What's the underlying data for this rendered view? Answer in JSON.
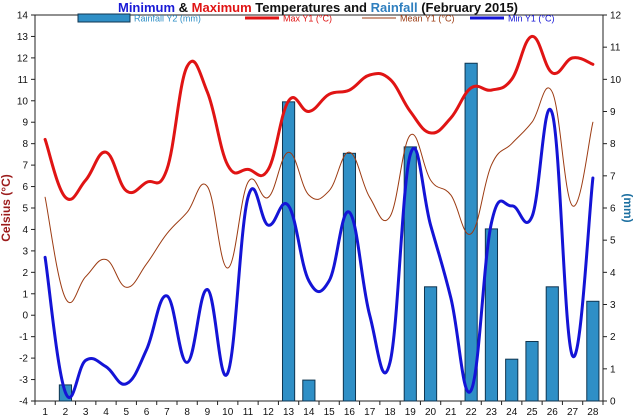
{
  "chart_data": {
    "type": "line",
    "title_parts": [
      {
        "text": "Minimum",
        "color": "#1a1ad6"
      },
      {
        "text": " & ",
        "color": "#111111"
      },
      {
        "text": "Maximum",
        "color": "#e01414"
      },
      {
        "text": " Temperatures and ",
        "color": "#111111"
      },
      {
        "text": "Rainfall",
        "color": "#2f7fbf"
      },
      {
        "text": " (February 2015)",
        "color": "#111111"
      }
    ],
    "title": "Minimum & Maximum Temperatures and Rainfall (February 2015)",
    "ylabel": "Celsius (°C)",
    "y2label": "(mm)",
    "ylim": [
      -4,
      14
    ],
    "y2lim": [
      0,
      12
    ],
    "yticks": [
      -4,
      -3,
      -2,
      -1,
      0,
      1,
      2,
      3,
      4,
      5,
      6,
      7,
      8,
      9,
      10,
      11,
      12,
      13,
      14
    ],
    "y2ticks": [
      0,
      1,
      2,
      3,
      4,
      5,
      6,
      7,
      8,
      9,
      10,
      11,
      12
    ],
    "x": [
      1,
      2,
      3,
      4,
      5,
      6,
      7,
      8,
      9,
      10,
      11,
      12,
      13,
      14,
      15,
      16,
      17,
      18,
      19,
      20,
      21,
      22,
      23,
      24,
      25,
      26,
      27,
      28
    ],
    "grid": false,
    "legend_placement": "top",
    "series": [
      {
        "name": "Rainfall Y2 (mm)",
        "kind": "bar",
        "axis": "y2",
        "color": "#2f8fc6",
        "values": [
          0,
          0.5,
          0,
          0,
          0,
          0,
          0,
          0,
          0,
          0,
          0,
          0,
          9.3,
          0.65,
          0,
          7.7,
          0,
          0,
          7.9,
          3.55,
          0,
          10.5,
          5.35,
          1.3,
          1.85,
          3.55,
          0,
          3.1
        ]
      },
      {
        "name": "Max Y1 (°C)",
        "kind": "line",
        "axis": "y",
        "color": "#e01414",
        "width": 3,
        "values": [
          8.2,
          5.5,
          6.3,
          7.6,
          5.8,
          6.2,
          6.8,
          11.6,
          10.4,
          7.0,
          6.8,
          6.8,
          10.0,
          9.5,
          10.3,
          10.5,
          11.2,
          11.0,
          9.5,
          8.5,
          9.2,
          10.6,
          10.5,
          11.0,
          13.0,
          11.3,
          12.0,
          11.7
        ]
      },
      {
        "name": "Mean Y1 (°C)",
        "kind": "line",
        "axis": "y",
        "color": "#9c3b12",
        "width": 1,
        "values": [
          5.5,
          0.8,
          1.8,
          2.6,
          1.3,
          2.4,
          3.8,
          4.8,
          6.0,
          2.2,
          6.2,
          5.5,
          7.6,
          5.6,
          5.8,
          7.6,
          5.5,
          4.6,
          8.4,
          6.3,
          5.6,
          3.8,
          7.0,
          8.0,
          9.0,
          10.4,
          5.1,
          9.0
        ]
      },
      {
        "name": "Min Y1 (°C)",
        "kind": "line",
        "axis": "y",
        "color": "#1414d6",
        "width": 3,
        "values": [
          2.7,
          -3.6,
          -2.1,
          -2.4,
          -3.2,
          -1.6,
          0.9,
          -2.2,
          1.2,
          -2.7,
          5.5,
          4.2,
          5.1,
          1.6,
          1.6,
          4.8,
          0,
          -2.2,
          7.5,
          4.2,
          0.8,
          -3.5,
          4.3,
          5.1,
          4.6,
          9.4,
          -1.9,
          6.4
        ]
      }
    ]
  }
}
